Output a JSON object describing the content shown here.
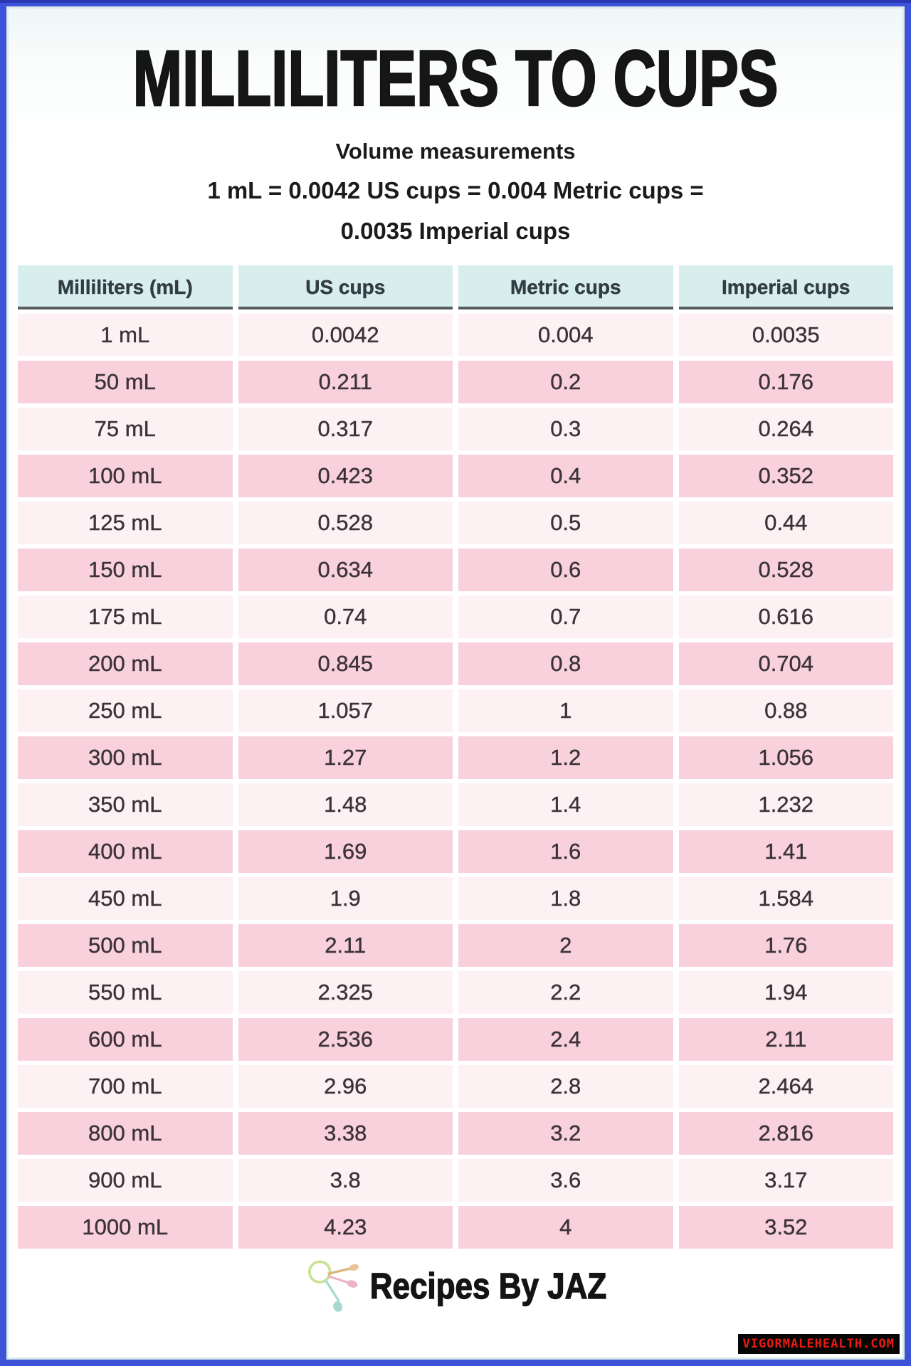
{
  "header": {
    "title": "MILLILITERS TO CUPS",
    "subtitle": "Volume measurements",
    "formula_line1": "1 mL = 0.0042 US cups = 0.004 Metric cups =",
    "formula_line2": "0.0035 Imperial cups"
  },
  "chart_data": {
    "type": "table",
    "title": "MILLILITERS TO CUPS",
    "columns": [
      "Milliliters (mL)",
      "US cups",
      "Metric cups",
      "Imperial cups"
    ],
    "rows": [
      [
        "1 mL",
        "0.0042",
        "0.004",
        "0.0035"
      ],
      [
        "50 mL",
        "0.211",
        "0.2",
        "0.176"
      ],
      [
        "75 mL",
        "0.317",
        "0.3",
        "0.264"
      ],
      [
        "100 mL",
        "0.423",
        "0.4",
        "0.352"
      ],
      [
        "125 mL",
        "0.528",
        "0.5",
        "0.44"
      ],
      [
        "150 mL",
        "0.634",
        "0.6",
        "0.528"
      ],
      [
        "175 mL",
        "0.74",
        "0.7",
        "0.616"
      ],
      [
        "200 mL",
        "0.845",
        "0.8",
        "0.704"
      ],
      [
        "250 mL",
        "1.057",
        "1",
        "0.88"
      ],
      [
        "300 mL",
        "1.27",
        "1.2",
        "1.056"
      ],
      [
        "350 mL",
        "1.48",
        "1.4",
        "1.232"
      ],
      [
        "400 mL",
        "1.69",
        "1.6",
        "1.41"
      ],
      [
        "450 mL",
        "1.9",
        "1.8",
        "1.584"
      ],
      [
        "500 mL",
        "2.11",
        "2",
        "1.76"
      ],
      [
        "550 mL",
        "2.325",
        "2.2",
        "1.94"
      ],
      [
        "600 mL",
        "2.536",
        "2.4",
        "2.11"
      ],
      [
        "700 mL",
        "2.96",
        "2.8",
        "2.464"
      ],
      [
        "800 mL",
        "3.38",
        "3.2",
        "2.816"
      ],
      [
        "900 mL",
        "3.8",
        "3.6",
        "3.17"
      ],
      [
        "1000 mL",
        "4.23",
        "4",
        "3.52"
      ]
    ]
  },
  "footer": {
    "brand": "Recipes By JAZ",
    "logo_icon": "measuring-spoons-icon"
  },
  "watermark": {
    "text": "VIGORMALEHEALTH.COM"
  },
  "colors": {
    "border_blue": "#3c52d8",
    "border_blue_dark": "#2a37b4",
    "header_teal": "#d8eeec",
    "header_underline": "#585c5e",
    "row_light_pink": "#fdf1f4",
    "row_dark_pink": "#f8d1dc",
    "watermark_red": "#ea1b12",
    "watermark_bg": "#060606"
  }
}
